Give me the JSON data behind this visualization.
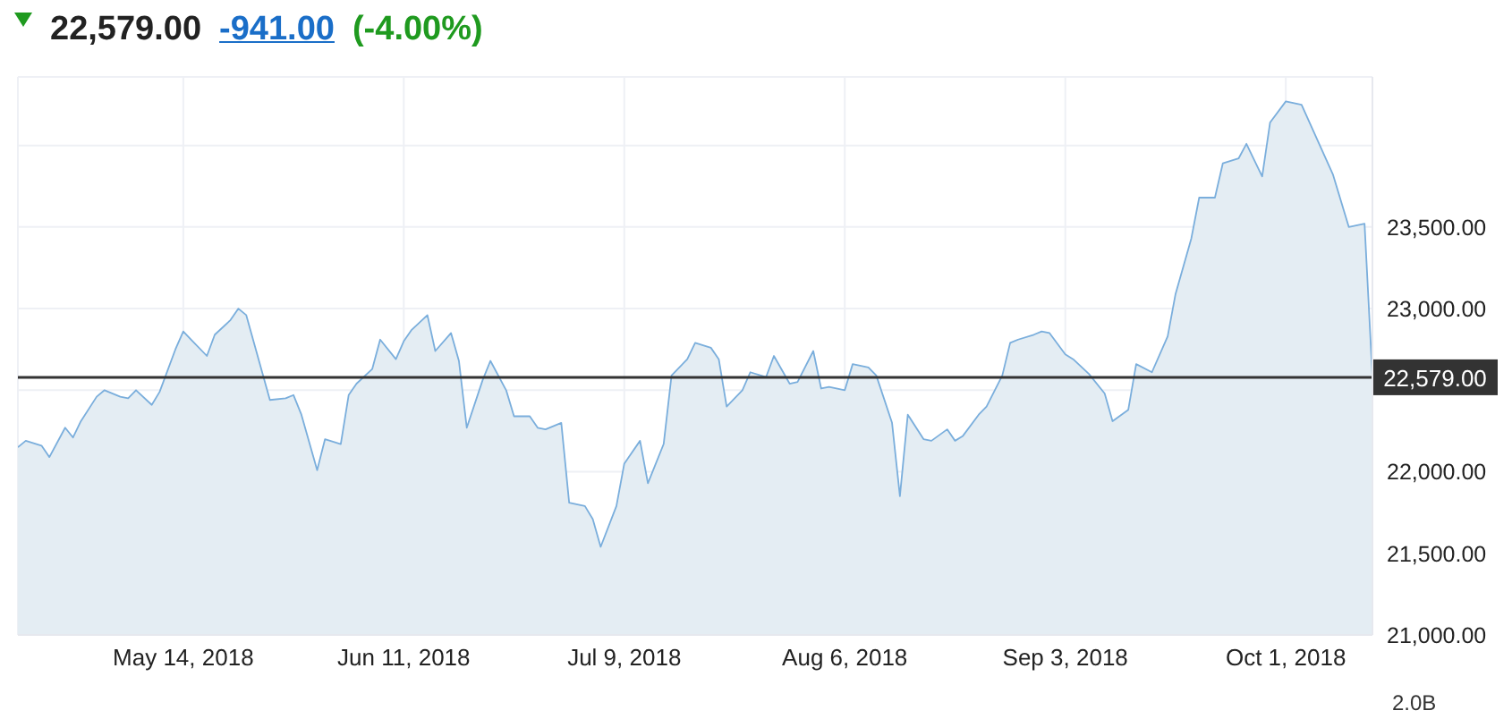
{
  "chart_data": {
    "type": "area",
    "annotations": [
      "22,579.00",
      "-941.00",
      "(-4.00%)",
      "2.0B"
    ],
    "x": [
      "2018-04-23",
      "2018-04-24",
      "2018-04-26",
      "2018-04-27",
      "2018-04-29",
      "2018-04-30",
      "2018-05-01",
      "2018-05-03",
      "2018-05-04",
      "2018-05-06",
      "2018-05-07",
      "2018-05-08",
      "2018-05-10",
      "2018-05-11",
      "2018-05-13",
      "2018-05-14",
      "2018-05-15",
      "2018-05-17",
      "2018-05-18",
      "2018-05-20",
      "2018-05-21",
      "2018-05-22",
      "2018-05-25",
      "2018-05-27",
      "2018-05-28",
      "2018-05-29",
      "2018-05-31",
      "2018-06-01",
      "2018-06-03",
      "2018-06-04",
      "2018-06-05",
      "2018-06-07",
      "2018-06-08",
      "2018-06-10",
      "2018-06-11",
      "2018-06-12",
      "2018-06-14",
      "2018-06-15",
      "2018-06-17",
      "2018-06-18",
      "2018-06-19",
      "2018-06-21",
      "2018-06-22",
      "2018-06-24",
      "2018-06-25",
      "2018-06-27",
      "2018-06-28",
      "2018-06-29",
      "2018-07-01",
      "2018-07-02",
      "2018-07-04",
      "2018-07-05",
      "2018-07-06",
      "2018-07-08",
      "2018-07-09",
      "2018-07-11",
      "2018-07-12",
      "2018-07-14",
      "2018-07-15",
      "2018-07-17",
      "2018-07-18",
      "2018-07-20",
      "2018-07-21",
      "2018-07-22",
      "2018-07-24",
      "2018-07-25",
      "2018-07-27",
      "2018-07-28",
      "2018-07-30",
      "2018-07-31",
      "2018-08-02",
      "2018-08-03",
      "2018-08-04",
      "2018-08-06",
      "2018-08-07",
      "2018-08-09",
      "2018-08-10",
      "2018-08-12",
      "2018-08-13",
      "2018-08-14",
      "2018-08-16",
      "2018-08-17",
      "2018-08-19",
      "2018-08-20",
      "2018-08-21",
      "2018-08-23",
      "2018-08-24",
      "2018-08-26",
      "2018-08-27",
      "2018-08-28",
      "2018-08-30",
      "2018-08-31",
      "2018-09-01",
      "2018-09-03",
      "2018-09-04",
      "2018-09-06",
      "2018-09-08",
      "2018-09-09",
      "2018-09-11",
      "2018-09-12",
      "2018-09-14",
      "2018-09-16",
      "2018-09-17",
      "2018-09-19",
      "2018-09-20",
      "2018-09-22",
      "2018-09-23",
      "2018-09-25",
      "2018-09-26",
      "2018-09-28",
      "2018-09-29",
      "2018-10-01",
      "2018-10-03",
      "2018-10-07",
      "2018-10-09",
      "2018-10-11",
      "2018-10-12"
    ],
    "series": [
      {
        "color": "#7aaedc",
        "values": [
          22150,
          22190,
          22160,
          22090,
          22270,
          22210,
          22310,
          22460,
          22500,
          22460,
          22450,
          22500,
          22410,
          22490,
          22750,
          22860,
          22810,
          22710,
          22840,
          22930,
          23000,
          22960,
          22440,
          22450,
          22470,
          22350,
          22010,
          22200,
          22170,
          22470,
          22540,
          22630,
          22810,
          22690,
          22800,
          22870,
          22960,
          22740,
          22850,
          22680,
          22270,
          22560,
          22680,
          22500,
          22340,
          22340,
          22270,
          22260,
          22300,
          21810,
          21790,
          21710,
          21540,
          21790,
          22050,
          22190,
          21930,
          22170,
          22590,
          22690,
          22790,
          22760,
          22690,
          22400,
          22500,
          22610,
          22580,
          22710,
          22540,
          22550,
          22740,
          22510,
          22520,
          22500,
          22660,
          22640,
          22590,
          22300,
          21850,
          22350,
          22200,
          22190,
          22260,
          22190,
          22220,
          22350,
          22400,
          22590,
          22790,
          22810,
          22840,
          22860,
          22850,
          22720,
          22690,
          22600,
          22480,
          22310,
          22380,
          22660,
          22610,
          22830,
          23090,
          23430,
          23680,
          23680,
          23890,
          23920,
          24010,
          23810,
          24140,
          24270,
          24250,
          23820,
          23500,
          23520,
          22580
        ]
      }
    ],
    "xlim": [
      "2018-04-23",
      "2018-10-12"
    ],
    "xticks": [
      {
        "value": "2018-05-14",
        "label": "May 14, 2018"
      },
      {
        "value": "2018-06-11",
        "label": "Jun 11, 2018"
      },
      {
        "value": "2018-07-09",
        "label": "Jul 9, 2018"
      },
      {
        "value": "2018-08-06",
        "label": "Aug 6, 2018"
      },
      {
        "value": "2018-09-03",
        "label": "Sep 3, 2018"
      },
      {
        "value": "2018-10-01",
        "label": "Oct 1, 2018"
      }
    ],
    "ylim": [
      21000,
      24420
    ],
    "yticks": [
      {
        "value": 21000,
        "label": "21,000.00"
      },
      {
        "value": 21500,
        "label": "21,500.00"
      },
      {
        "value": 22000,
        "label": "22,000.00"
      },
      {
        "value": 22500,
        "label": null
      },
      {
        "value": 23000,
        "label": "23,000.00"
      },
      {
        "value": 23500,
        "label": "23,500.00"
      },
      {
        "value": 24000,
        "label": null
      }
    ],
    "ref_lines": [
      {
        "axis": "y",
        "value": 22579,
        "label": "22,579.00",
        "color": "#333333"
      }
    ],
    "grid": true
  }
}
